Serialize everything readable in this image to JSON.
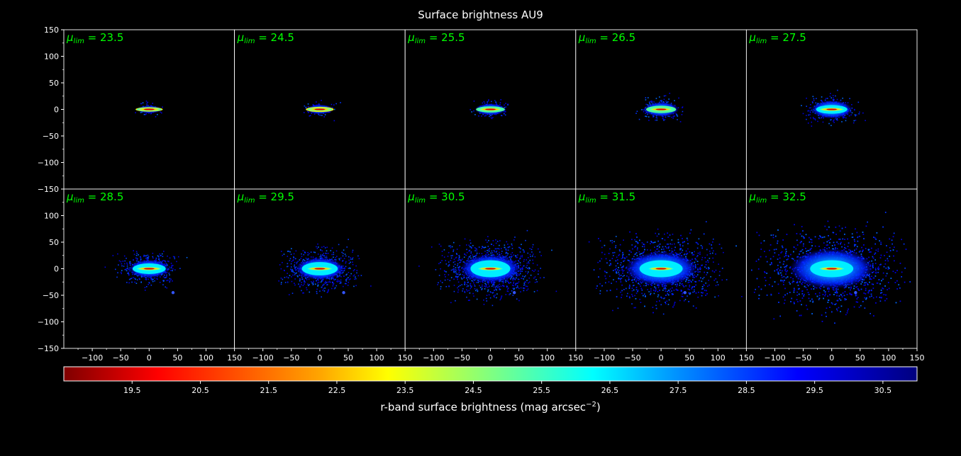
{
  "chart_data": {
    "type": "heatmap",
    "title": "Surface brightness AU9",
    "grid": false,
    "layout": {
      "rows": 2,
      "cols": 5
    },
    "panel_label_prefix": "μ",
    "panel_label_sub": "lim",
    "panels": [
      {
        "mu_lim": "23.5",
        "halo_scale": 0.1
      },
      {
        "mu_lim": "24.5",
        "halo_scale": 0.13
      },
      {
        "mu_lim": "25.5",
        "halo_scale": 0.17
      },
      {
        "mu_lim": "26.5",
        "halo_scale": 0.22
      },
      {
        "mu_lim": "27.5",
        "halo_scale": 0.28
      },
      {
        "mu_lim": "28.5",
        "halo_scale": 0.36
      },
      {
        "mu_lim": "29.5",
        "halo_scale": 0.48
      },
      {
        "mu_lim": "30.5",
        "halo_scale": 0.65
      },
      {
        "mu_lim": "31.5",
        "halo_scale": 0.82
      },
      {
        "mu_lim": "32.5",
        "halo_scale": 1.0
      }
    ],
    "x_axis": {
      "range": [
        -150,
        150
      ],
      "ticks": [
        "−100",
        "−50",
        "0",
        "50",
        "100",
        "150"
      ],
      "tick_values": [
        -100,
        -50,
        0,
        50,
        100,
        150
      ]
    },
    "y_axis": {
      "range": [
        -150,
        150
      ],
      "ticks": [
        "150",
        "100",
        "50",
        "0",
        "−50",
        "−100",
        "−150"
      ],
      "tick_values": [
        150,
        100,
        50,
        0,
        -50,
        -100,
        -150
      ]
    },
    "colorbar": {
      "label": "r-band surface brightness (mag arcsec",
      "label_sup": "−2",
      "label_close": ")",
      "range": [
        18.5,
        31.0
      ],
      "ticks": [
        "19.5",
        "20.5",
        "21.5",
        "22.5",
        "23.5",
        "24.5",
        "25.5",
        "26.5",
        "27.5",
        "28.5",
        "29.5",
        "30.5"
      ],
      "tick_values": [
        19.5,
        20.5,
        21.5,
        22.5,
        23.5,
        24.5,
        25.5,
        26.5,
        27.5,
        28.5,
        29.5,
        30.5
      ],
      "colormap": "jet_r"
    },
    "colors": {
      "panel_label": "#00ff00",
      "axes": "#ffffff",
      "background": "#000000"
    }
  }
}
